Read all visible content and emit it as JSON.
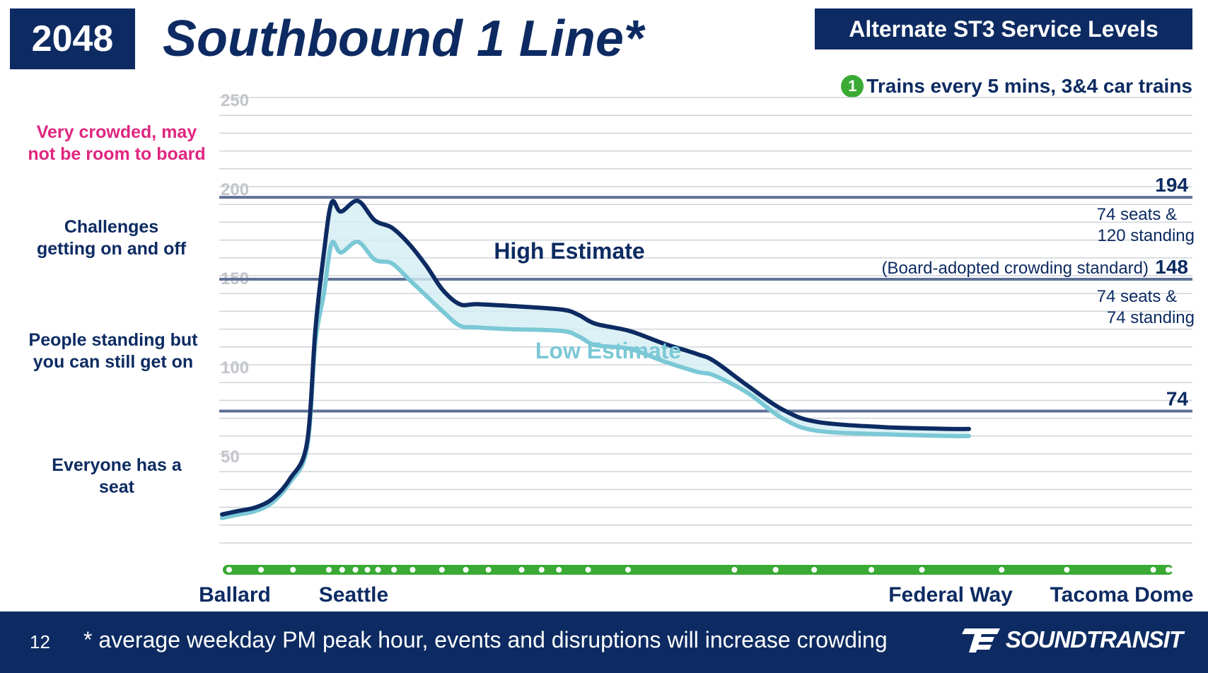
{
  "header": {
    "year": "2048",
    "title": "Southbound 1 Line*",
    "alt_label": "Alternate ST3 Service Levels",
    "service_number": "1",
    "service_text": "Trains every 5 mins, 3&4 car trains"
  },
  "bands": [
    {
      "text_line1": "Very crowded, may",
      "text_line2": "not be room to board",
      "color": "#e0267f"
    },
    {
      "text_line1": "Challenges",
      "text_line2": "getting on and off",
      "color": "#0d2b62"
    },
    {
      "text_line1": "People standing but",
      "text_line2": "you can still get on",
      "color": "#0d2b62"
    },
    {
      "text_line1": "Everyone has a",
      "text_line2": "seat",
      "color": "#0d2b62"
    }
  ],
  "chart_data": {
    "type": "line",
    "ylim": [
      0,
      250
    ],
    "yticks": [
      "50",
      "100",
      "150",
      "200",
      "250"
    ],
    "ytick_values": [
      50,
      100,
      150,
      200,
      250
    ],
    "x_station_labels": [
      "Ballard",
      "Seattle",
      "Federal Way",
      "Tacoma Dome"
    ],
    "reference_lines": [
      {
        "value": 194,
        "label": "194",
        "note_line1": "74 seats &",
        "note_line2": "120 standing"
      },
      {
        "value": 148,
        "label": "148",
        "prefix": "(Board-adopted crowding standard)",
        "note_line1": "74 seats &",
        "note_line2": "74 standing"
      },
      {
        "value": 74,
        "label": "74"
      }
    ],
    "series": [
      {
        "name": "High Estimate",
        "color": "#0d2b62",
        "points": [
          [
            0,
            16
          ],
          [
            20,
            18
          ],
          [
            40,
            20
          ],
          [
            60,
            25
          ],
          [
            80,
            36
          ],
          [
            100,
            56
          ],
          [
            110,
            120
          ],
          [
            120,
            163
          ],
          [
            129,
            191
          ],
          [
            140,
            186
          ],
          [
            160,
            192
          ],
          [
            180,
            181
          ],
          [
            200,
            177
          ],
          [
            220,
            168
          ],
          [
            240,
            156
          ],
          [
            260,
            142
          ],
          [
            280,
            134
          ],
          [
            300,
            134
          ],
          [
            340,
            133
          ],
          [
            400,
            131
          ],
          [
            420,
            128
          ],
          [
            440,
            123
          ],
          [
            480,
            119
          ],
          [
            520,
            112
          ],
          [
            560,
            106
          ],
          [
            580,
            102
          ],
          [
            620,
            88
          ],
          [
            660,
            75
          ],
          [
            700,
            68
          ],
          [
            780,
            65
          ],
          [
            860,
            64
          ],
          [
            880,
            64
          ]
        ]
      },
      {
        "name": "Low Estimate",
        "color": "#7bc8d6",
        "points": [
          [
            0,
            14
          ],
          [
            20,
            16
          ],
          [
            40,
            18
          ],
          [
            60,
            23
          ],
          [
            80,
            34
          ],
          [
            100,
            53
          ],
          [
            110,
            113
          ],
          [
            120,
            140
          ],
          [
            129,
            168
          ],
          [
            140,
            163
          ],
          [
            160,
            169
          ],
          [
            180,
            159
          ],
          [
            200,
            157
          ],
          [
            220,
            148
          ],
          [
            240,
            139
          ],
          [
            260,
            130
          ],
          [
            280,
            122
          ],
          [
            300,
            121
          ],
          [
            340,
            120
          ],
          [
            400,
            119
          ],
          [
            420,
            116
          ],
          [
            440,
            111
          ],
          [
            480,
            109
          ],
          [
            520,
            102
          ],
          [
            560,
            96
          ],
          [
            580,
            94
          ],
          [
            620,
            84
          ],
          [
            660,
            70
          ],
          [
            700,
            63
          ],
          [
            780,
            61
          ],
          [
            860,
            60
          ],
          [
            880,
            60
          ]
        ]
      }
    ],
    "dot_positions": [
      0,
      24,
      48,
      75,
      85,
      95,
      104,
      112,
      124,
      138,
      160,
      178,
      195,
      220,
      235,
      248,
      270,
      300,
      380,
      411,
      440,
      483,
      521,
      581,
      630,
      695,
      710
    ]
  },
  "footer": {
    "page": "12",
    "note": "* average weekday PM peak hour, events and disruptions will increase crowding",
    "logo_text": "SOUNDTRANSIT"
  }
}
